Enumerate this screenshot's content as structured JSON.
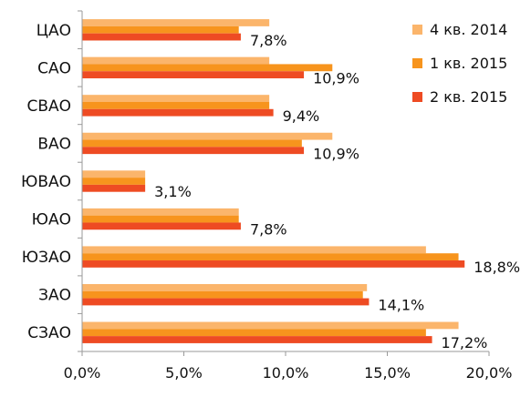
{
  "chart_data": {
    "type": "bar",
    "orientation": "horizontal",
    "categories": [
      "ЦАО",
      "САО",
      "СВАО",
      "ВАО",
      "ЮВАО",
      "ЮАО",
      "ЮЗАО",
      "ЗАО",
      "СЗАО"
    ],
    "series": [
      {
        "name": "4 кв. 2014",
        "color": "#FBB56B",
        "values": [
          9.2,
          9.2,
          9.2,
          12.3,
          3.1,
          7.7,
          16.9,
          14.0,
          18.5
        ]
      },
      {
        "name": "1 кв. 2015",
        "color": "#F7941D",
        "values": [
          7.7,
          12.3,
          9.2,
          10.8,
          3.1,
          7.7,
          18.5,
          13.8,
          16.9
        ]
      },
      {
        "name": "2 кв. 2015",
        "color": "#EE4B23",
        "values": [
          7.8,
          10.9,
          9.4,
          10.9,
          3.1,
          7.8,
          18.8,
          14.1,
          17.2
        ]
      }
    ],
    "data_labels": [
      "7,8%",
      "10,9%",
      "9,4%",
      "10,9%",
      "3,1%",
      "7,8%",
      "18,8%",
      "14,1%",
      "17,2%"
    ],
    "x_ticks": [
      "0,0%",
      "5,0%",
      "10,0%",
      "15,0%",
      "20,0%"
    ],
    "xlim": [
      0,
      20
    ],
    "grid": false,
    "legend_position": "top-right",
    "title": "",
    "xlabel": "",
    "ylabel": ""
  }
}
